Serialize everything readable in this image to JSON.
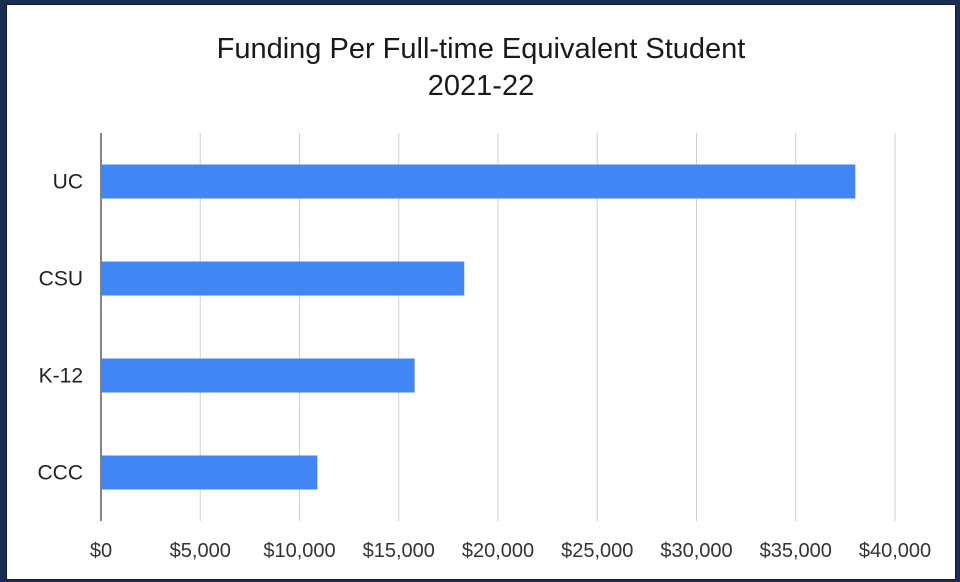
{
  "chart_data": {
    "type": "bar",
    "orientation": "horizontal",
    "title": "Funding Per Full-time Equivalent Student",
    "subtitle": "2021-22",
    "categories": [
      "UC",
      "CSU",
      "K-12",
      "CCC"
    ],
    "values": [
      38000,
      18300,
      15800,
      10900
    ],
    "xlim": [
      0,
      40000
    ],
    "x_ticks": [
      0,
      5000,
      10000,
      15000,
      20000,
      25000,
      30000,
      35000,
      40000
    ],
    "x_tick_labels": [
      "$0",
      "$5,000",
      "$10,000",
      "$15,000",
      "$20,000",
      "$25,000",
      "$30,000",
      "$35,000",
      "$40,000"
    ],
    "xlabel": "",
    "ylabel": "",
    "grid": "vertical",
    "legend": "none",
    "bar_color": "#4285f4"
  }
}
